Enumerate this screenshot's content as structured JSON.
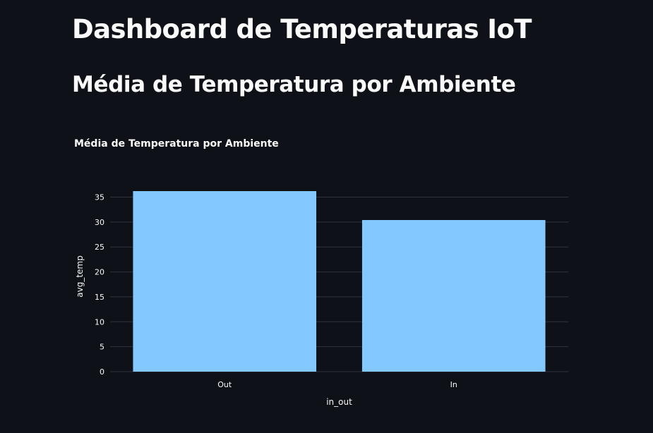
{
  "page": {
    "title": "Dashboard de Temperaturas IoT",
    "subheader": "Média de Temperatura por Ambiente"
  },
  "colors": {
    "background": "#0e1117",
    "bar": "#83c9ff",
    "grid": "#31333f",
    "text": "#fafafa"
  },
  "chart_data": {
    "type": "bar",
    "title": "Média de Temperatura por Ambiente",
    "categories": [
      "Out",
      "In"
    ],
    "values": [
      36.2,
      30.4
    ],
    "xlabel": "in_out",
    "ylabel": "avg_temp",
    "ylim": [
      0,
      36.2
    ],
    "yticks": [
      0,
      5,
      10,
      15,
      20,
      25,
      30,
      35
    ],
    "grid": true,
    "legend": "none"
  }
}
